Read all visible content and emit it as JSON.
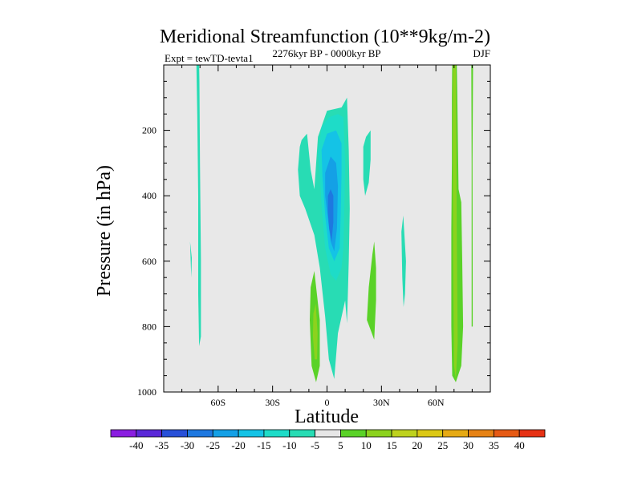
{
  "chart_data": {
    "type": "contour",
    "title": "Meridional Streamfunction (10**9kg/m-2)",
    "left_string": "Expt = tewTD-tevta1",
    "center_string": "2276kyr BP - 0000kyr BP",
    "right_string": "DJF",
    "xlabel": "Latitude",
    "ylabel": "Pressure (in hPa)",
    "xlim": [
      -90,
      90
    ],
    "ylim": [
      1000,
      0
    ],
    "x_ticks": [
      {
        "value": -60,
        "label": "60S"
      },
      {
        "value": -30,
        "label": "30S"
      },
      {
        "value": 0,
        "label": "0"
      },
      {
        "value": 30,
        "label": "30N"
      },
      {
        "value": 60,
        "label": "60N"
      }
    ],
    "y_ticks": [
      {
        "value": 200,
        "label": "200"
      },
      {
        "value": 400,
        "label": "400"
      },
      {
        "value": 600,
        "label": "600"
      },
      {
        "value": 800,
        "label": "800"
      },
      {
        "value": 1000,
        "label": "1000"
      }
    ],
    "background_color": "#e8e8e8",
    "colorbar": {
      "levels": [
        "-40",
        "-35",
        "-30",
        "-25",
        "-20",
        "-15",
        "-10",
        "-5",
        "5",
        "10",
        "15",
        "20",
        "25",
        "30",
        "35",
        "40"
      ],
      "colors": [
        "#8a1ee0",
        "#5a28d8",
        "#2850d8",
        "#1e78e0",
        "#14a0e6",
        "#14c3e6",
        "#1edcc8",
        "#28dcb4",
        "#e6e6e6",
        "#5ad228",
        "#8cd21e",
        "#bed21e",
        "#dcc814",
        "#e6aa14",
        "#e68214",
        "#e65a14",
        "#e63214"
      ]
    },
    "regions": [
      {
        "name": "neg-cell-75S",
        "value_class": "-5 to -10",
        "color": "#28dcb4",
        "points": [
          [
            -72,
            -5
          ],
          [
            -71.5,
            150
          ],
          [
            -71,
            400
          ],
          [
            -71,
            700
          ],
          [
            -70.5,
            860
          ],
          [
            -69.5,
            830
          ],
          [
            -69.5,
            600
          ],
          [
            -70,
            300
          ],
          [
            -70.3,
            50
          ],
          [
            -70.5,
            -5
          ]
        ]
      },
      {
        "name": "neg-cell-80S-tail",
        "value_class": "-5 to -10",
        "color": "#28dcb4",
        "points": [
          [
            -75.5,
            540
          ],
          [
            -75,
            620
          ],
          [
            -74.8,
            650
          ],
          [
            -74.5,
            590
          ]
        ]
      },
      {
        "name": "neg-main-envelope",
        "value_class": "-5 to -10",
        "color": "#28dcb4",
        "points": [
          [
            -14,
            230
          ],
          [
            -11,
            210
          ],
          [
            -9,
            320
          ],
          [
            -7,
            380
          ],
          [
            -5,
            220
          ],
          [
            0,
            140
          ],
          [
            8,
            130
          ],
          [
            11,
            100
          ],
          [
            12,
            260
          ],
          [
            12.5,
            440
          ],
          [
            12,
            600
          ],
          [
            11.5,
            700
          ],
          [
            11,
            790
          ],
          [
            10,
            720
          ],
          [
            6,
            820
          ],
          [
            4,
            960
          ],
          [
            1,
            900
          ],
          [
            -1,
            770
          ],
          [
            -4,
            620
          ],
          [
            -7,
            520
          ],
          [
            -12,
            440
          ],
          [
            -15,
            400
          ],
          [
            -16,
            320
          ],
          [
            -15,
            250
          ]
        ]
      },
      {
        "name": "neg-main-10",
        "value_class": "-10 to -15",
        "color": "#1edcc8",
        "points": [
          [
            -5,
            270
          ],
          [
            -3,
            190
          ],
          [
            1,
            160
          ],
          [
            6,
            150
          ],
          [
            9,
            160
          ],
          [
            10,
            300
          ],
          [
            9.5,
            450
          ],
          [
            9,
            560
          ],
          [
            8,
            620
          ],
          [
            5,
            660
          ],
          [
            2,
            640
          ],
          [
            -1,
            560
          ],
          [
            -3,
            430
          ],
          [
            -4,
            330
          ]
        ]
      },
      {
        "name": "neg-main-15",
        "value_class": "-15 to -20",
        "color": "#14c3e6",
        "points": [
          [
            -3,
            260
          ],
          [
            0,
            210
          ],
          [
            5,
            200
          ],
          [
            8,
            240
          ],
          [
            8,
            330
          ],
          [
            7.5,
            460
          ],
          [
            7,
            560
          ],
          [
            4,
            600
          ],
          [
            1,
            560
          ],
          [
            -1,
            460
          ],
          [
            -2.5,
            340
          ]
        ]
      },
      {
        "name": "neg-main-20",
        "value_class": "-20 to -25",
        "color": "#14a0e6",
        "points": [
          [
            -1,
            330
          ],
          [
            2,
            280
          ],
          [
            5,
            300
          ],
          [
            6,
            370
          ],
          [
            5.5,
            500
          ],
          [
            4,
            570
          ],
          [
            2,
            540
          ],
          [
            0.5,
            470
          ],
          [
            -1,
            400
          ]
        ]
      },
      {
        "name": "neg-main-25",
        "value_class": "-25 to -30",
        "color": "#1e78e0",
        "points": [
          [
            0.5,
            400
          ],
          [
            2,
            380
          ],
          [
            3.5,
            400
          ],
          [
            3.5,
            480
          ],
          [
            2.5,
            540
          ],
          [
            1.2,
            500
          ],
          [
            0.5,
            450
          ]
        ]
      },
      {
        "name": "neg-cell-22N",
        "value_class": "-5 to -10",
        "color": "#28dcb4",
        "points": [
          [
            20,
            250
          ],
          [
            21.5,
            220
          ],
          [
            24,
            200
          ],
          [
            24,
            290
          ],
          [
            23,
            360
          ],
          [
            21,
            400
          ],
          [
            20,
            350
          ]
        ]
      },
      {
        "name": "neg-cell-42N",
        "value_class": "-5 to -10",
        "color": "#28dcb4",
        "points": [
          [
            41,
            510
          ],
          [
            42,
            460
          ],
          [
            43.5,
            600
          ],
          [
            43,
            700
          ],
          [
            42.2,
            740
          ],
          [
            41.5,
            650
          ]
        ]
      },
      {
        "name": "pos-cell-5S",
        "value_class": "5 to 10",
        "color": "#5ad228",
        "points": [
          [
            -9,
            680
          ],
          [
            -7,
            630
          ],
          [
            -4,
            780
          ],
          [
            -4,
            920
          ],
          [
            -6,
            970
          ],
          [
            -8.5,
            920
          ],
          [
            -9.5,
            780
          ]
        ]
      },
      {
        "name": "pos-cell-5S-core",
        "value_class": "10 to 15",
        "color": "#8cd21e",
        "points": [
          [
            -7.5,
            760
          ],
          [
            -6.2,
            730
          ],
          [
            -5.2,
            820
          ],
          [
            -5.5,
            900
          ],
          [
            -6.8,
            900
          ],
          [
            -7.8,
            830
          ]
        ]
      },
      {
        "name": "pos-cell-27N",
        "value_class": "5 to 10",
        "color": "#5ad228",
        "points": [
          [
            22,
            780
          ],
          [
            23,
            680
          ],
          [
            25,
            580
          ],
          [
            26,
            540
          ],
          [
            27,
            620
          ],
          [
            27,
            720
          ],
          [
            26,
            840
          ],
          [
            24,
            810
          ]
        ]
      },
      {
        "name": "pos-cell-72N",
        "value_class": "5 to 10",
        "color": "#5ad228",
        "points": [
          [
            69,
            -5
          ],
          [
            71.5,
            -5
          ],
          [
            71.8,
            80
          ],
          [
            72.5,
            380
          ],
          [
            74,
            420
          ],
          [
            74.5,
            600
          ],
          [
            75,
            800
          ],
          [
            74,
            920
          ],
          [
            71,
            970
          ],
          [
            69,
            950
          ],
          [
            68.5,
            800
          ],
          [
            68.5,
            500
          ],
          [
            68.8,
            300
          ],
          [
            68.8,
            100
          ]
        ]
      },
      {
        "name": "pos-cell-72N-core",
        "value_class": "10 to 15",
        "color": "#8cd21e",
        "points": [
          [
            69.5,
            -5
          ],
          [
            71,
            -5
          ],
          [
            71.2,
            200
          ],
          [
            71.5,
            500
          ],
          [
            72,
            850
          ],
          [
            71,
            960
          ],
          [
            70,
            920
          ],
          [
            69.5,
            600
          ],
          [
            69.3,
            200
          ]
        ]
      },
      {
        "name": "pos-cell-80N",
        "value_class": "5 to 10",
        "color": "#5ad228",
        "points": [
          [
            79.5,
            -5
          ],
          [
            80.5,
            -5
          ],
          [
            80.2,
            300
          ],
          [
            80.3,
            800
          ],
          [
            79.7,
            800
          ],
          [
            79.7,
            300
          ]
        ]
      }
    ]
  }
}
